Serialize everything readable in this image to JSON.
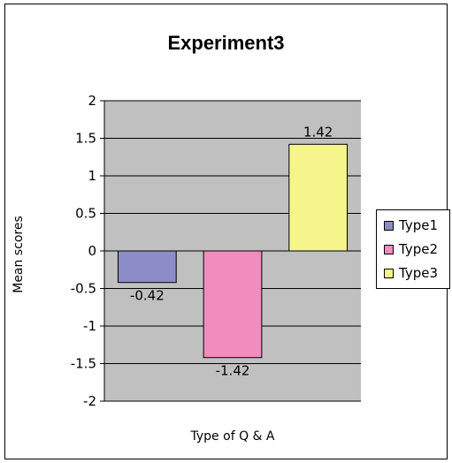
{
  "chart_data": {
    "type": "bar",
    "title": "Experiment3",
    "xlabel": "Type of Q & A",
    "ylabel": "Mean scores",
    "ylim": [
      -2,
      2
    ],
    "yticks": [
      "2",
      "1.5",
      "1",
      "0.5",
      "0",
      "-0.5",
      "-1",
      "-1.5",
      "-2"
    ],
    "ytick_values": [
      2,
      1.5,
      1,
      0.5,
      0,
      -0.5,
      -1,
      -1.5,
      -2
    ],
    "grid": true,
    "legend_position": "right",
    "series": [
      {
        "name": "Type1",
        "value": -0.42,
        "label": "-0.42",
        "color": "#8C8CC8"
      },
      {
        "name": "Type2",
        "value": -1.42,
        "label": "-1.42",
        "color": "#F08CBE"
      },
      {
        "name": "Type3",
        "value": 1.42,
        "label": "1.42",
        "color": "#F5F58C"
      }
    ],
    "plot_background": "#C0C0C0"
  }
}
